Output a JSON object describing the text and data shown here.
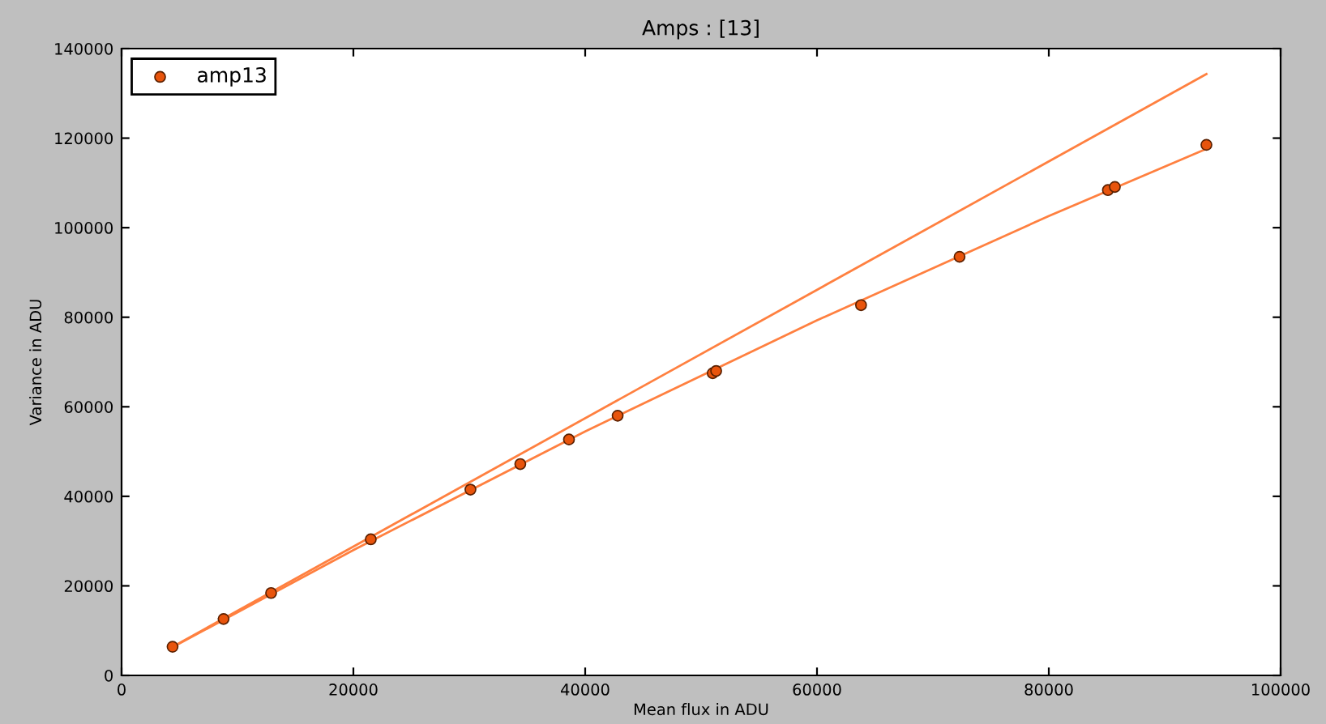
{
  "chart_data": {
    "type": "scatter",
    "title": "Amps : [13]",
    "xlabel": "Mean flux in ADU",
    "ylabel": "Variance in ADU",
    "xlim": [
      0,
      100000
    ],
    "ylim": [
      0,
      140000
    ],
    "xticks": [
      0,
      20000,
      40000,
      60000,
      80000,
      100000
    ],
    "yticks": [
      0,
      20000,
      40000,
      60000,
      80000,
      100000,
      120000,
      140000
    ],
    "legend": "top left",
    "series": [
      {
        "name": "amp13",
        "color": "#e8540c",
        "marker": "circle",
        "x": [
          4400,
          8800,
          12900,
          21500,
          30100,
          34400,
          38600,
          42800,
          51000,
          51300,
          63800,
          72300,
          85100,
          85700,
          93600
        ],
        "values": [
          6400,
          12600,
          18400,
          30400,
          41500,
          47200,
          52700,
          58000,
          67500,
          68000,
          82700,
          93500,
          108400,
          109100,
          118500
        ]
      },
      {
        "type": "line",
        "color": "#ff8040",
        "marker": "none",
        "x": [
          4400,
          93600
        ],
        "values": [
          6400,
          134300
        ]
      },
      {
        "type": "line",
        "color": "#ff8040",
        "marker": "none",
        "x": [
          4400,
          20000,
          40000,
          60000,
          80000,
          93600
        ],
        "values": [
          6300,
          28000,
          54500,
          79300,
          102600,
          117600
        ]
      }
    ]
  }
}
